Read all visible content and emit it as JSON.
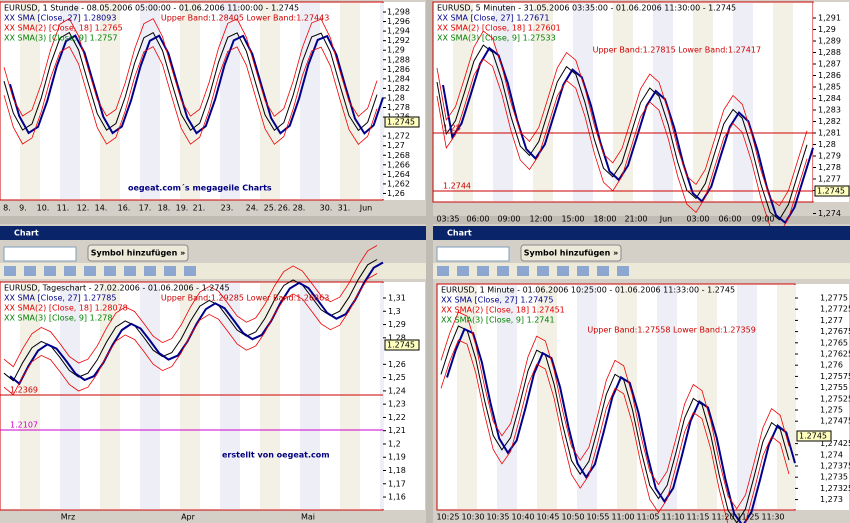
{
  "windows": [
    {
      "title": "EURUSD, 1 Stunde - 08.05.2006 05:00:00 - 01.06.2006 11:00:00 - 1.2745",
      "legend": [
        "XX SMA [Close, 27] 1.28093",
        "XX SMA(2) [Close, 18] 1.2765",
        "XX SMA(3) [Close, 9] 1.2757"
      ],
      "bands": "Upper Band:1.28405 Lower Band:1.27443",
      "last_price": "1.2745",
      "annotation": "oegeat.com´s megageile Charts",
      "y_labels": [
        "1,298",
        "1,296",
        "1,294",
        "1,292",
        "1,29",
        "1,288",
        "1,286",
        "1,284",
        "1,282",
        "1,28",
        "1,278",
        "1,276",
        "1,272",
        "1,27",
        "1,268",
        "1,266",
        "1,264",
        "1,262",
        "1,26"
      ],
      "x_labels": [
        "8.",
        "9.",
        "10.",
        "11.",
        "12.",
        "14.",
        "16.",
        "17.",
        "18.",
        "19.",
        "21.",
        "23.",
        "24.",
        "25.",
        "26.",
        "28.",
        "30.",
        "31.",
        "Jun"
      ]
    },
    {
      "title": "EURUSD, 5 Minuten - 31.05.2006 03:35:00 - 01.06.2006 11:30:00 - 1.2745",
      "legend": [
        "XX SMA [Close, 27] 1.27671",
        "XX SMA(2) [Close, 18] 1.27601",
        "XX SMA(3) [Close, 9] 1.27533"
      ],
      "bands": "Upper Band:1.27815 Lower Band:1.27417",
      "last_price": "1.2745",
      "levels": [
        "1.28",
        "1.2744"
      ],
      "y_labels": [
        "1,291",
        "1,29",
        "1,289",
        "1,288",
        "1,287",
        "1,286",
        "1,285",
        "1,284",
        "1,283",
        "1,282",
        "1,281",
        "1,28",
        "1,279",
        "1,278",
        "1,277",
        "1,276",
        "1,274"
      ],
      "x_labels": [
        "03:35",
        "06:00",
        "09:00",
        "12:00",
        "15:00",
        "18:00",
        "21:00",
        "Jun",
        "03:00",
        "06:00",
        "09:00"
      ]
    },
    {
      "window": "Chart",
      "button": "Symbol hinzufügen »",
      "title": "EURUSD, Tageschart - 27.02.2006 - 01.06.2006 - 1.2745",
      "legend": [
        "XX SMA [Close, 27] 1.27785",
        "XX SMA(2) [Close, 18] 1.28078",
        "XX SMA(3) [Close, 9] 1.278"
      ],
      "bands": "Upper Band:1.29285 Lower Band:1.26863",
      "last_price": "1.2745",
      "levels": [
        "1.2369",
        "1.2107"
      ],
      "annotation": "erstellt von oegeat.com",
      "y_labels": [
        "1,31",
        "1,3",
        "1,29",
        "1,28",
        "1,26",
        "1,25",
        "1,24",
        "1,23",
        "1,22",
        "1,21",
        "1,2",
        "1,19",
        "1,18",
        "1,17",
        "1,16"
      ],
      "x_labels": [
        "Mrz",
        "Apr",
        "Mai"
      ]
    },
    {
      "window": "Chart",
      "button": "Symbol hinzufügen »",
      "title": "EURUSD, 1 Minute - 01.06.2006 10:25:00 - 01.06.2006 11:33:00 - 1.2745",
      "legend": [
        "XX SMA [Close, 27] 1.27475",
        "XX SMA(2) [Close, 18] 1.27451",
        "XX SMA(3) [Close, 9] 1.2741"
      ],
      "bands": "Upper Band:1.27558 Lower Band:1.27359",
      "last_price": "1.2745",
      "y_labels": [
        "1,2775",
        "1,27725",
        "1,277",
        "1,27675",
        "1,2765",
        "1,27625",
        "1,276",
        "1,27575",
        "1,2755",
        "1,27525",
        "1,275",
        "1,27475",
        "1,27425",
        "1,274",
        "1,27375",
        "1,2735",
        "1,27325",
        "1,273"
      ],
      "x_labels": [
        "10:25",
        "10:30",
        "10:35",
        "10:40",
        "10:45",
        "10:50",
        "10:55",
        "11:00",
        "11:05",
        "11:10",
        "11:15",
        "11:20",
        "11:25",
        "11:30"
      ]
    }
  ]
}
